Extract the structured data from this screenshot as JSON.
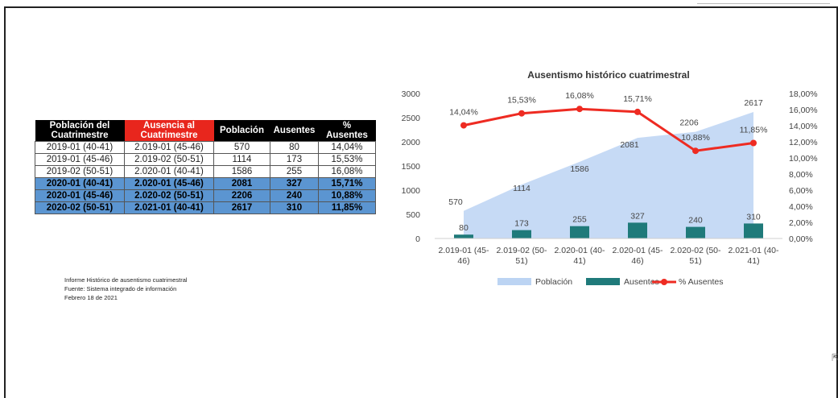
{
  "table": {
    "headers": [
      "Población del Cuatrimestre",
      "Ausencia al Cuatrimestre",
      "Población",
      "Ausentes",
      "% Ausentes"
    ],
    "rows": [
      {
        "periodo": "2019-01 (40-41)",
        "ausencia": "2.019-01 (45-46)",
        "poblacion": "570",
        "ausentes": "80",
        "pct": "14,04%",
        "highlight": false
      },
      {
        "periodo": "2019-01 (45-46)",
        "ausencia": "2.019-02 (50-51)",
        "poblacion": "1114",
        "ausentes": "173",
        "pct": "15,53%",
        "highlight": false
      },
      {
        "periodo": "2019-02 (50-51)",
        "ausencia": "2.020-01 (40-41)",
        "poblacion": "1586",
        "ausentes": "255",
        "pct": "16,08%",
        "highlight": false
      },
      {
        "periodo": "2020-01 (40-41)",
        "ausencia": "2.020-01 (45-46)",
        "poblacion": "2081",
        "ausentes": "327",
        "pct": "15,71%",
        "highlight": true
      },
      {
        "periodo": "2020-01 (45-46)",
        "ausencia": "2.020-02 (50-51)",
        "poblacion": "2206",
        "ausentes": "240",
        "pct": "10,88%",
        "highlight": true
      },
      {
        "periodo": "2020-02 (50-51)",
        "ausencia": "2.021-01 (40-41)",
        "poblacion": "2617",
        "ausentes": "310",
        "pct": "11,85%",
        "highlight": true
      }
    ]
  },
  "notes": {
    "line1": "Informe Histórico de ausentismo cuatrimestral",
    "line2": "Fuente: Sistema integrado de información",
    "line3": "Febrero 18 de 2021"
  },
  "colors": {
    "header_dark": "#000000",
    "header_red": "#e8261d",
    "highlight_row": "#5b95d1",
    "area": "#bcd4f3",
    "bar": "#1f7a7a",
    "line": "#ee2b22"
  },
  "chart_data": {
    "type": "bar",
    "title": "Ausentismo histórico cuatrimestral",
    "categories": [
      [
        "2.019-01 (45-",
        "46)"
      ],
      [
        "2.019-02 (50-",
        "51)"
      ],
      [
        "2.020-01 (40-",
        "41)"
      ],
      [
        "2.020-01 (45-",
        "46)"
      ],
      [
        "2.020-02 (50-",
        "51)"
      ],
      [
        "2.021-01 (40-",
        "41)"
      ]
    ],
    "series": [
      {
        "name": "Población",
        "kind": "area",
        "axis": "left",
        "values": [
          570,
          1114,
          1586,
          2081,
          2206,
          2617
        ]
      },
      {
        "name": "Ausentes",
        "kind": "bar",
        "axis": "left",
        "values": [
          80,
          173,
          255,
          327,
          240,
          310
        ]
      },
      {
        "name": "% Ausentes",
        "kind": "line",
        "axis": "right",
        "values": [
          14.04,
          15.53,
          16.08,
          15.71,
          10.88,
          11.85
        ],
        "labels": [
          "14,04%",
          "15,53%",
          "16,08%",
          "15,71%",
          "10,88%",
          "11,85%"
        ]
      }
    ],
    "ylim_left": [
      0,
      3000
    ],
    "yticks_left": [
      "0",
      "500",
      "1000",
      "1500",
      "2000",
      "2500",
      "3000"
    ],
    "ylim_right": [
      0,
      18
    ],
    "yticks_right": [
      "0,00%",
      "2,00%",
      "4,00%",
      "6,00%",
      "8,00%",
      "10,00%",
      "12,00%",
      "14,00%",
      "16,00%",
      "18,00%"
    ],
    "legend": "bottom",
    "grid": false
  }
}
